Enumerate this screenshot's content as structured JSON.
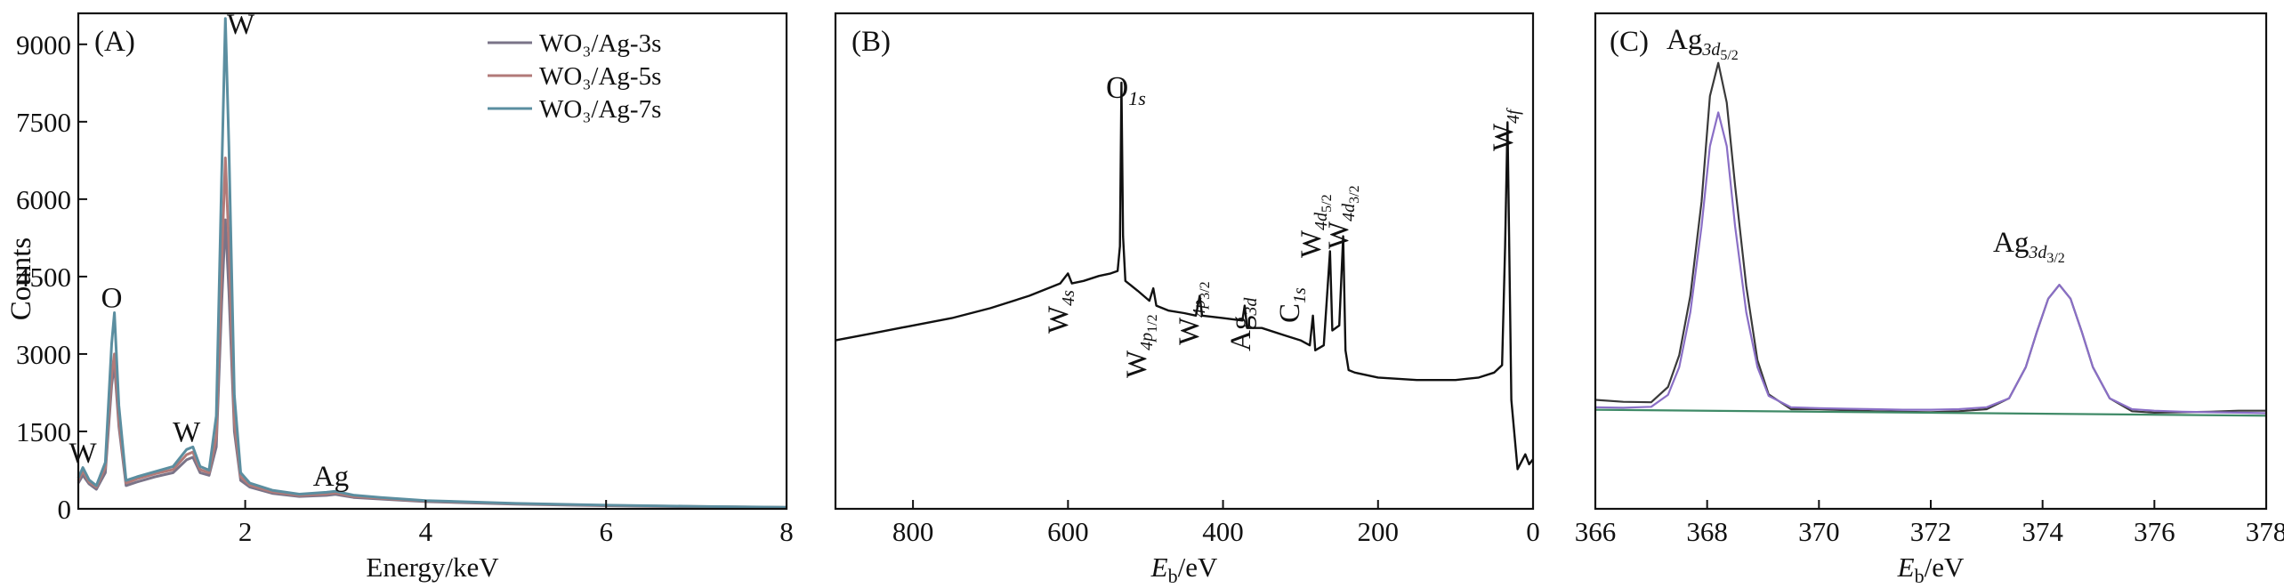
{
  "chart_data": [
    {
      "panel": "(A)",
      "type": "line",
      "xlabel": "Energy/keV",
      "ylabel": "Counts",
      "xlim": [
        0.15,
        8
      ],
      "ylim": [
        0,
        9600
      ],
      "xticks": [
        "2",
        "4",
        "6",
        "8"
      ],
      "yticks": [
        "0",
        "1500",
        "3000",
        "4500",
        "6000",
        "7500",
        "9000"
      ],
      "legend_position": "top-right",
      "legend": [
        "WO₃/Ag-3s",
        "WO₃/Ag-5s",
        "WO₃/Ag-7s"
      ],
      "annotations": [
        {
          "label": "W",
          "x": 0.2,
          "y": 900
        },
        {
          "label": "O",
          "x": 0.52,
          "y": 3900
        },
        {
          "label": "W",
          "x": 1.35,
          "y": 1300
        },
        {
          "label": "W",
          "x": 1.95,
          "y": 9200
        },
        {
          "label": "Ag",
          "x": 2.95,
          "y": 450
        }
      ],
      "series": [
        {
          "name": "WO₃/Ag-3s",
          "color": "#7a7488",
          "points": [
            [
              0.15,
              500
            ],
            [
              0.2,
              650
            ],
            [
              0.27,
              480
            ],
            [
              0.35,
              380
            ],
            [
              0.45,
              700
            ],
            [
              0.52,
              2400
            ],
            [
              0.55,
              2800
            ],
            [
              0.6,
              1600
            ],
            [
              0.68,
              450
            ],
            [
              0.8,
              520
            ],
            [
              1.0,
              620
            ],
            [
              1.2,
              700
            ],
            [
              1.35,
              950
            ],
            [
              1.42,
              1000
            ],
            [
              1.5,
              700
            ],
            [
              1.6,
              650
            ],
            [
              1.68,
              1200
            ],
            [
              1.74,
              4000
            ],
            [
              1.78,
              5600
            ],
            [
              1.82,
              4200
            ],
            [
              1.88,
              1500
            ],
            [
              1.95,
              550
            ],
            [
              2.05,
              420
            ],
            [
              2.3,
              300
            ],
            [
              2.6,
              240
            ],
            [
              2.9,
              260
            ],
            [
              3.0,
              280
            ],
            [
              3.2,
              220
            ],
            [
              3.5,
              190
            ],
            [
              4.0,
              140
            ],
            [
              5.0,
              90
            ],
            [
              6.0,
              60
            ],
            [
              7.0,
              40
            ],
            [
              8.0,
              25
            ]
          ]
        },
        {
          "name": "WO₃/Ag-5s",
          "color": "#b27a78",
          "points": [
            [
              0.15,
              550
            ],
            [
              0.2,
              730
            ],
            [
              0.27,
              520
            ],
            [
              0.35,
              420
            ],
            [
              0.45,
              800
            ],
            [
              0.52,
              2600
            ],
            [
              0.55,
              3000
            ],
            [
              0.6,
              1700
            ],
            [
              0.68,
              500
            ],
            [
              0.8,
              580
            ],
            [
              1.0,
              680
            ],
            [
              1.2,
              760
            ],
            [
              1.35,
              1050
            ],
            [
              1.42,
              1100
            ],
            [
              1.5,
              760
            ],
            [
              1.6,
              700
            ],
            [
              1.68,
              1400
            ],
            [
              1.74,
              4800
            ],
            [
              1.78,
              6800
            ],
            [
              1.82,
              5100
            ],
            [
              1.88,
              1700
            ],
            [
              1.95,
              620
            ],
            [
              2.05,
              460
            ],
            [
              2.3,
              330
            ],
            [
              2.6,
              260
            ],
            [
              2.9,
              290
            ],
            [
              3.0,
              310
            ],
            [
              3.2,
              240
            ],
            [
              3.5,
              205
            ],
            [
              4.0,
              150
            ],
            [
              5.0,
              100
            ],
            [
              6.0,
              65
            ],
            [
              7.0,
              45
            ],
            [
              8.0,
              28
            ]
          ]
        },
        {
          "name": "WO₃/Ag-7s",
          "color": "#5b8ea0",
          "points": [
            [
              0.15,
              600
            ],
            [
              0.2,
              800
            ],
            [
              0.27,
              560
            ],
            [
              0.35,
              450
            ],
            [
              0.45,
              900
            ],
            [
              0.52,
              3200
            ],
            [
              0.55,
              3800
            ],
            [
              0.6,
              2000
            ],
            [
              0.68,
              550
            ],
            [
              0.8,
              620
            ],
            [
              1.0,
              720
            ],
            [
              1.2,
              820
            ],
            [
              1.35,
              1150
            ],
            [
              1.42,
              1200
            ],
            [
              1.5,
              820
            ],
            [
              1.6,
              750
            ],
            [
              1.68,
              1800
            ],
            [
              1.74,
              6500
            ],
            [
              1.78,
              9500
            ],
            [
              1.82,
              7000
            ],
            [
              1.88,
              2200
            ],
            [
              1.95,
              700
            ],
            [
              2.05,
              500
            ],
            [
              2.3,
              360
            ],
            [
              2.6,
              285
            ],
            [
              2.9,
              320
            ],
            [
              3.0,
              340
            ],
            [
              3.2,
              265
            ],
            [
              3.5,
              220
            ],
            [
              4.0,
              160
            ],
            [
              5.0,
              105
            ],
            [
              6.0,
              70
            ],
            [
              7.0,
              48
            ],
            [
              8.0,
              30
            ]
          ]
        }
      ]
    },
    {
      "panel": "(B)",
      "type": "line",
      "xlabel_italic": "E",
      "xlabel_sub": "b",
      "xlabel_rest": "/eV",
      "xlim": [
        900,
        0
      ],
      "ylim": [
        0,
        100
      ],
      "xticks": [
        "800",
        "600",
        "400",
        "200",
        "0"
      ],
      "annotations": [
        {
          "main": "W",
          "sub": "4s"
        },
        {
          "main": "W",
          "sub": "4p",
          "subsub": "1/2"
        },
        {
          "main": "W",
          "sub": "4p",
          "subsub": "3/2"
        },
        {
          "main": "Ag",
          "sub": "3d"
        },
        {
          "main": "C",
          "sub": "1s"
        },
        {
          "main": "W",
          "sub": "4d",
          "subsub": "5/2"
        },
        {
          "main": "W",
          "sub": "4d",
          "subsub": "3/2"
        },
        {
          "main": "O",
          "sub": "1s"
        },
        {
          "main": "W",
          "sub": "4f"
        }
      ],
      "series": [
        {
          "color": "#111111",
          "points": [
            [
              900,
              34
            ],
            [
              850,
              35.5
            ],
            [
              800,
              37
            ],
            [
              750,
              38.5
            ],
            [
              700,
              40.5
            ],
            [
              650,
              43
            ],
            [
              610,
              45.5
            ],
            [
              600,
              47.5
            ],
            [
              595,
              45.5
            ],
            [
              580,
              46
            ],
            [
              560,
              47
            ],
            [
              545,
              47.5
            ],
            [
              536,
              48
            ],
            [
              533,
              53
            ],
            [
              531,
              86
            ],
            [
              529,
              55
            ],
            [
              526,
              46
            ],
            [
              510,
              44
            ],
            [
              495,
              42
            ],
            [
              490,
              44.5
            ],
            [
              486,
              41
            ],
            [
              470,
              40
            ],
            [
              450,
              39.5
            ],
            [
              435,
              39
            ],
            [
              430,
              43
            ],
            [
              427,
              39
            ],
            [
              400,
              38.5
            ],
            [
              375,
              38
            ],
            [
              372,
              41
            ],
            [
              369,
              36.5
            ],
            [
              350,
              36.5
            ],
            [
              320,
              35
            ],
            [
              300,
              34
            ],
            [
              288,
              33
            ],
            [
              284,
              39
            ],
            [
              281,
              32
            ],
            [
              270,
              33
            ],
            [
              262,
              52
            ],
            [
              259,
              36
            ],
            [
              250,
              37
            ],
            [
              245,
              55
            ],
            [
              242,
              32
            ],
            [
              238,
              28
            ],
            [
              230,
              27.5
            ],
            [
              200,
              26.5
            ],
            [
              150,
              26
            ],
            [
              100,
              26
            ],
            [
              70,
              26.5
            ],
            [
              50,
              27.5
            ],
            [
              40,
              29
            ],
            [
              36,
              53
            ],
            [
              33,
              78
            ],
            [
              31,
              56
            ],
            [
              28,
              22
            ],
            [
              20,
              8
            ],
            [
              10,
              11
            ],
            [
              5,
              9
            ],
            [
              0,
              10
            ]
          ]
        }
      ]
    },
    {
      "panel": "(C)",
      "type": "line",
      "xlabel_italic": "E",
      "xlabel_sub": "b",
      "xlabel_rest": "/eV",
      "xlim": [
        366,
        378
      ],
      "ylim": [
        0,
        100
      ],
      "xticks": [
        "366",
        "368",
        "370",
        "372",
        "374",
        "376",
        "378"
      ],
      "annotations": [
        {
          "main": "Ag",
          "sub": "3d",
          "subsub": "5/2"
        },
        {
          "main": "Ag",
          "sub": "3d",
          "subsub": "3/2"
        }
      ],
      "series": [
        {
          "role": "data",
          "color": "#3a3a3a",
          "points": [
            [
              366,
              22
            ],
            [
              366.5,
              21.6
            ],
            [
              367,
              21.5
            ],
            [
              367.3,
              24.6
            ],
            [
              367.5,
              31
            ],
            [
              367.7,
              43
            ],
            [
              367.9,
              62
            ],
            [
              368.05,
              83.3
            ],
            [
              368.2,
              90
            ],
            [
              368.35,
              82
            ],
            [
              368.5,
              65.2
            ],
            [
              368.7,
              45
            ],
            [
              368.9,
              30
            ],
            [
              369.1,
              23.1
            ],
            [
              369.5,
              20.1
            ],
            [
              370,
              20.1
            ],
            [
              370.5,
              19.9
            ],
            [
              371,
              19.7
            ],
            [
              371.5,
              19.6
            ],
            [
              372,
              19.5
            ],
            [
              372.5,
              19.7
            ],
            [
              373,
              20.1
            ],
            [
              373.4,
              22.3
            ],
            [
              373.7,
              28.6
            ],
            [
              373.9,
              35.8
            ],
            [
              374.1,
              42.4
            ],
            [
              374.3,
              45.2
            ],
            [
              374.5,
              42.4
            ],
            [
              374.7,
              35.8
            ],
            [
              374.9,
              28.6
            ],
            [
              375.2,
              22.3
            ],
            [
              375.6,
              19.7
            ],
            [
              376,
              19.4
            ],
            [
              376.5,
              19.5
            ],
            [
              377,
              19.6
            ],
            [
              377.5,
              19.8
            ],
            [
              378,
              19.8
            ]
          ]
        },
        {
          "role": "fit",
          "color": "#8a6fc6",
          "points": [
            [
              366,
              20.5
            ],
            [
              366.5,
              20.4
            ],
            [
              367,
              20.6
            ],
            [
              367.3,
              23
            ],
            [
              367.5,
              28.6
            ],
            [
              367.7,
              39.7
            ],
            [
              367.9,
              57
            ],
            [
              368.05,
              73.2
            ],
            [
              368.2,
              80
            ],
            [
              368.35,
              73.2
            ],
            [
              368.5,
              57
            ],
            [
              368.7,
              39.7
            ],
            [
              368.9,
              28.6
            ],
            [
              369.1,
              22.8
            ],
            [
              369.5,
              20.5
            ],
            [
              370,
              20.3
            ],
            [
              370.5,
              20.2
            ],
            [
              371,
              20.1
            ],
            [
              371.5,
              20
            ],
            [
              372,
              20
            ],
            [
              372.5,
              20.1
            ],
            [
              373,
              20.5
            ],
            [
              373.4,
              22.3
            ],
            [
              373.7,
              28.6
            ],
            [
              373.9,
              35.8
            ],
            [
              374.1,
              42.4
            ],
            [
              374.3,
              45.2
            ],
            [
              374.5,
              42.4
            ],
            [
              374.7,
              35.8
            ],
            [
              374.9,
              28.6
            ],
            [
              375.2,
              22.3
            ],
            [
              375.6,
              20.1
            ],
            [
              376,
              19.8
            ],
            [
              376.5,
              19.6
            ],
            [
              377,
              19.5
            ],
            [
              377.5,
              19.4
            ],
            [
              378,
              19.3
            ]
          ]
        },
        {
          "role": "baseline",
          "color": "#3f8a67",
          "points": [
            [
              366,
              20
            ],
            [
              378,
              18.8
            ]
          ]
        }
      ]
    }
  ]
}
